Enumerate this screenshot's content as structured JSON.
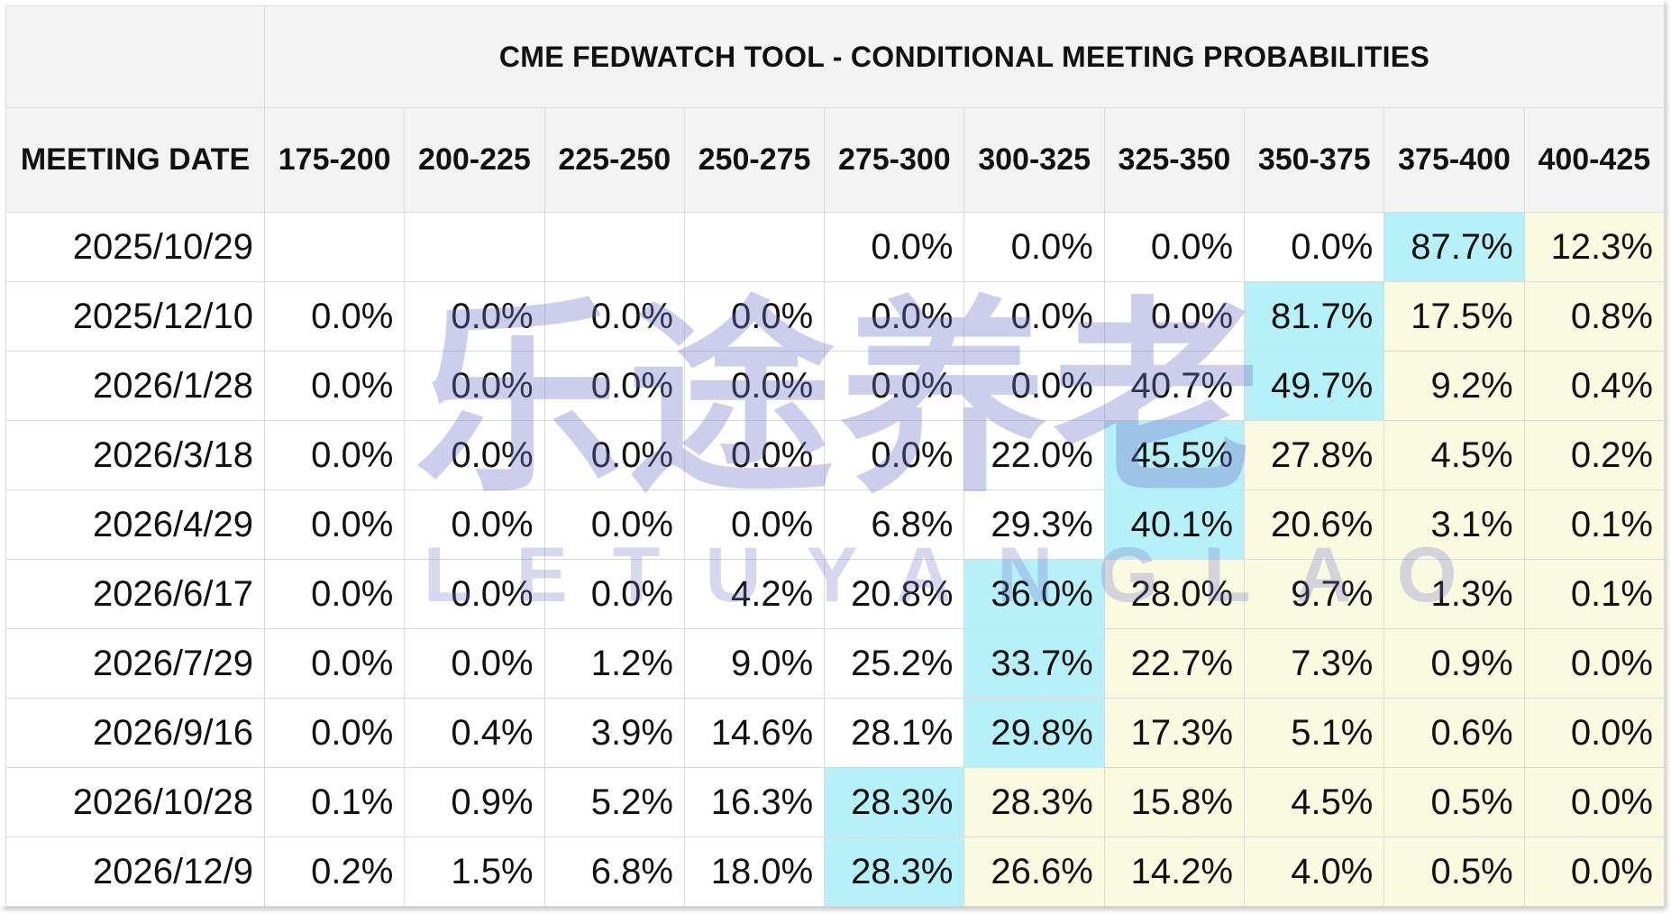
{
  "table": {
    "title": "CME FEDWATCH TOOL - CONDITIONAL MEETING PROBABILITIES",
    "date_header": "MEETING DATE",
    "columns": [
      "175-200",
      "200-225",
      "225-250",
      "250-275",
      "275-300",
      "300-325",
      "325-350",
      "350-375",
      "375-400",
      "400-425"
    ],
    "rows": [
      {
        "date": "2025/10/29",
        "values": [
          "",
          "",
          "",
          "",
          "0.0%",
          "0.0%",
          "0.0%",
          "0.0%",
          "87.7%",
          "12.3%"
        ],
        "hl": [
          "",
          "",
          "",
          "",
          "",
          "",
          "",
          "",
          "max",
          "high"
        ]
      },
      {
        "date": "2025/12/10",
        "values": [
          "0.0%",
          "0.0%",
          "0.0%",
          "0.0%",
          "0.0%",
          "0.0%",
          "0.0%",
          "81.7%",
          "17.5%",
          "0.8%"
        ],
        "hl": [
          "",
          "",
          "",
          "",
          "",
          "",
          "",
          "max",
          "high",
          "high"
        ]
      },
      {
        "date": "2026/1/28",
        "values": [
          "0.0%",
          "0.0%",
          "0.0%",
          "0.0%",
          "0.0%",
          "0.0%",
          "40.7%",
          "49.7%",
          "9.2%",
          "0.4%"
        ],
        "hl": [
          "",
          "",
          "",
          "",
          "",
          "",
          "",
          "max",
          "high",
          "high"
        ]
      },
      {
        "date": "2026/3/18",
        "values": [
          "0.0%",
          "0.0%",
          "0.0%",
          "0.0%",
          "0.0%",
          "22.0%",
          "45.5%",
          "27.8%",
          "4.5%",
          "0.2%"
        ],
        "hl": [
          "",
          "",
          "",
          "",
          "",
          "",
          "max",
          "high",
          "high",
          "high"
        ]
      },
      {
        "date": "2026/4/29",
        "values": [
          "0.0%",
          "0.0%",
          "0.0%",
          "0.0%",
          "6.8%",
          "29.3%",
          "40.1%",
          "20.6%",
          "3.1%",
          "0.1%"
        ],
        "hl": [
          "",
          "",
          "",
          "",
          "",
          "",
          "max",
          "high",
          "high",
          "high"
        ]
      },
      {
        "date": "2026/6/17",
        "values": [
          "0.0%",
          "0.0%",
          "0.0%",
          "4.2%",
          "20.8%",
          "36.0%",
          "28.0%",
          "9.7%",
          "1.3%",
          "0.1%"
        ],
        "hl": [
          "",
          "",
          "",
          "",
          "",
          "max",
          "high",
          "high",
          "high",
          "high"
        ]
      },
      {
        "date": "2026/7/29",
        "values": [
          "0.0%",
          "0.0%",
          "1.2%",
          "9.0%",
          "25.2%",
          "33.7%",
          "22.7%",
          "7.3%",
          "0.9%",
          "0.0%"
        ],
        "hl": [
          "",
          "",
          "",
          "",
          "",
          "max",
          "high",
          "high",
          "high",
          "high"
        ]
      },
      {
        "date": "2026/9/16",
        "values": [
          "0.0%",
          "0.4%",
          "3.9%",
          "14.6%",
          "28.1%",
          "29.8%",
          "17.3%",
          "5.1%",
          "0.6%",
          "0.0%"
        ],
        "hl": [
          "",
          "",
          "",
          "",
          "",
          "max",
          "high",
          "high",
          "high",
          "high"
        ]
      },
      {
        "date": "2026/10/28",
        "values": [
          "0.1%",
          "0.9%",
          "5.2%",
          "16.3%",
          "28.3%",
          "28.3%",
          "15.8%",
          "4.5%",
          "0.5%",
          "0.0%"
        ],
        "hl": [
          "",
          "",
          "",
          "",
          "max",
          "high",
          "high",
          "high",
          "high",
          "high"
        ]
      },
      {
        "date": "2026/12/9",
        "values": [
          "0.2%",
          "1.5%",
          "6.8%",
          "18.0%",
          "28.3%",
          "26.6%",
          "14.2%",
          "4.0%",
          "0.5%",
          "0.0%"
        ],
        "hl": [
          "",
          "",
          "",
          "",
          "max",
          "high",
          "high",
          "high",
          "high",
          "high"
        ]
      }
    ]
  },
  "colors": {
    "highlight_max": "#b6f0f8",
    "highlight_high": "#fafae0",
    "header_bg": "#f3f3f3",
    "grid": "#dcdcdc"
  },
  "watermark": {
    "cn": "乐途养老",
    "en": "LETUYANGLAO"
  }
}
